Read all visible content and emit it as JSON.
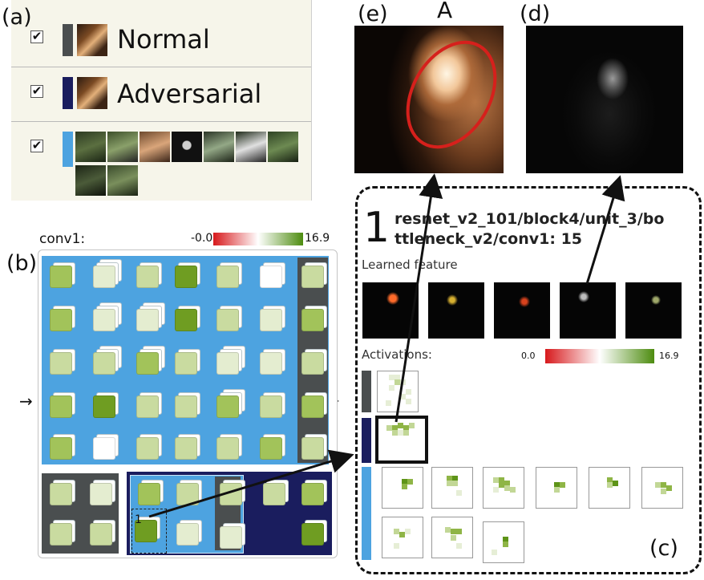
{
  "panel_letters": {
    "a": "(a)",
    "b": "(b)",
    "c": "(c)",
    "d": "(d)",
    "e": "(e)"
  },
  "legend": {
    "rows": [
      {
        "label": "Normal",
        "checked": "✔",
        "swatch_color": "#4a4e4f"
      },
      {
        "label": "Adversarial",
        "checked": "✔",
        "swatch_color": "#1a1d5e"
      },
      {
        "label": "",
        "checked": "✔",
        "swatch_color": "#4da3e0"
      }
    ]
  },
  "conv": {
    "layer_label": "conv1:",
    "scale_min": "-0.0",
    "scale_max": "16.9",
    "selected_marker": "1",
    "left_arrow": "→",
    "right_tick": "-"
  },
  "images": {
    "e_annotation": "A"
  },
  "detail": {
    "rank": "1",
    "name_line1": "resnet_v2_101/block4/unit_3/bo",
    "name_line2": "ttleneck_v2/conv1: 15",
    "learned_feature_label": "Learned feature",
    "activations_label": "Activations:",
    "act_min": "0.0",
    "act_max": "16.9"
  },
  "colors": {
    "normal": "#4a4e4f",
    "adversarial": "#1a1d5e",
    "selected_class": "#4da3e0",
    "scale_low": "#d7191c",
    "scale_mid": "#ffffff",
    "scale_high": "#4d8c0f"
  }
}
